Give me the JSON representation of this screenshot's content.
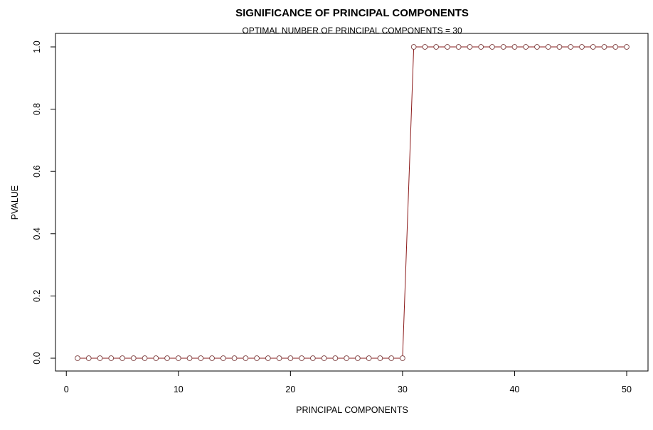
{
  "chart_data": {
    "type": "line",
    "title": "SIGNIFICANCE OF PRINCIPAL COMPONENTS",
    "subtitle": "OPTIMAL NUMBER OF PRINCIPAL COMPONENTS = 30",
    "xlabel": "PRINCIPAL COMPONENTS",
    "ylabel": "PVALUE",
    "xlim": [
      1,
      50
    ],
    "ylim": [
      0,
      1
    ],
    "xticks": [
      0,
      10,
      20,
      30,
      40,
      50
    ],
    "xtick_labels": [
      "0",
      "10",
      "20",
      "30",
      "40",
      "50"
    ],
    "yticks": [
      0,
      0.2,
      0.4,
      0.6,
      0.8,
      1.0
    ],
    "ytick_labels": [
      "0.0",
      "0.2",
      "0.4",
      "0.6",
      "0.8",
      "1.0"
    ],
    "grid": false,
    "series": [
      {
        "name": "pvalue",
        "line_color": "#8b1a1a",
        "marker_color": "#7a3b3b",
        "x": [
          1,
          2,
          3,
          4,
          5,
          6,
          7,
          8,
          9,
          10,
          11,
          12,
          13,
          14,
          15,
          16,
          17,
          18,
          19,
          20,
          21,
          22,
          23,
          24,
          25,
          26,
          27,
          28,
          29,
          30,
          31,
          32,
          33,
          34,
          35,
          36,
          37,
          38,
          39,
          40,
          41,
          42,
          43,
          44,
          45,
          46,
          47,
          48,
          49,
          50
        ],
        "values": [
          0,
          0,
          0,
          0,
          0,
          0,
          0,
          0,
          0,
          0,
          0,
          0,
          0,
          0,
          0,
          0,
          0,
          0,
          0,
          0,
          0,
          0,
          0,
          0,
          0,
          0,
          0,
          0,
          0,
          0,
          1,
          1,
          1,
          1,
          1,
          1,
          1,
          1,
          1,
          1,
          1,
          1,
          1,
          1,
          1,
          1,
          1,
          1,
          1,
          1
        ]
      }
    ]
  }
}
